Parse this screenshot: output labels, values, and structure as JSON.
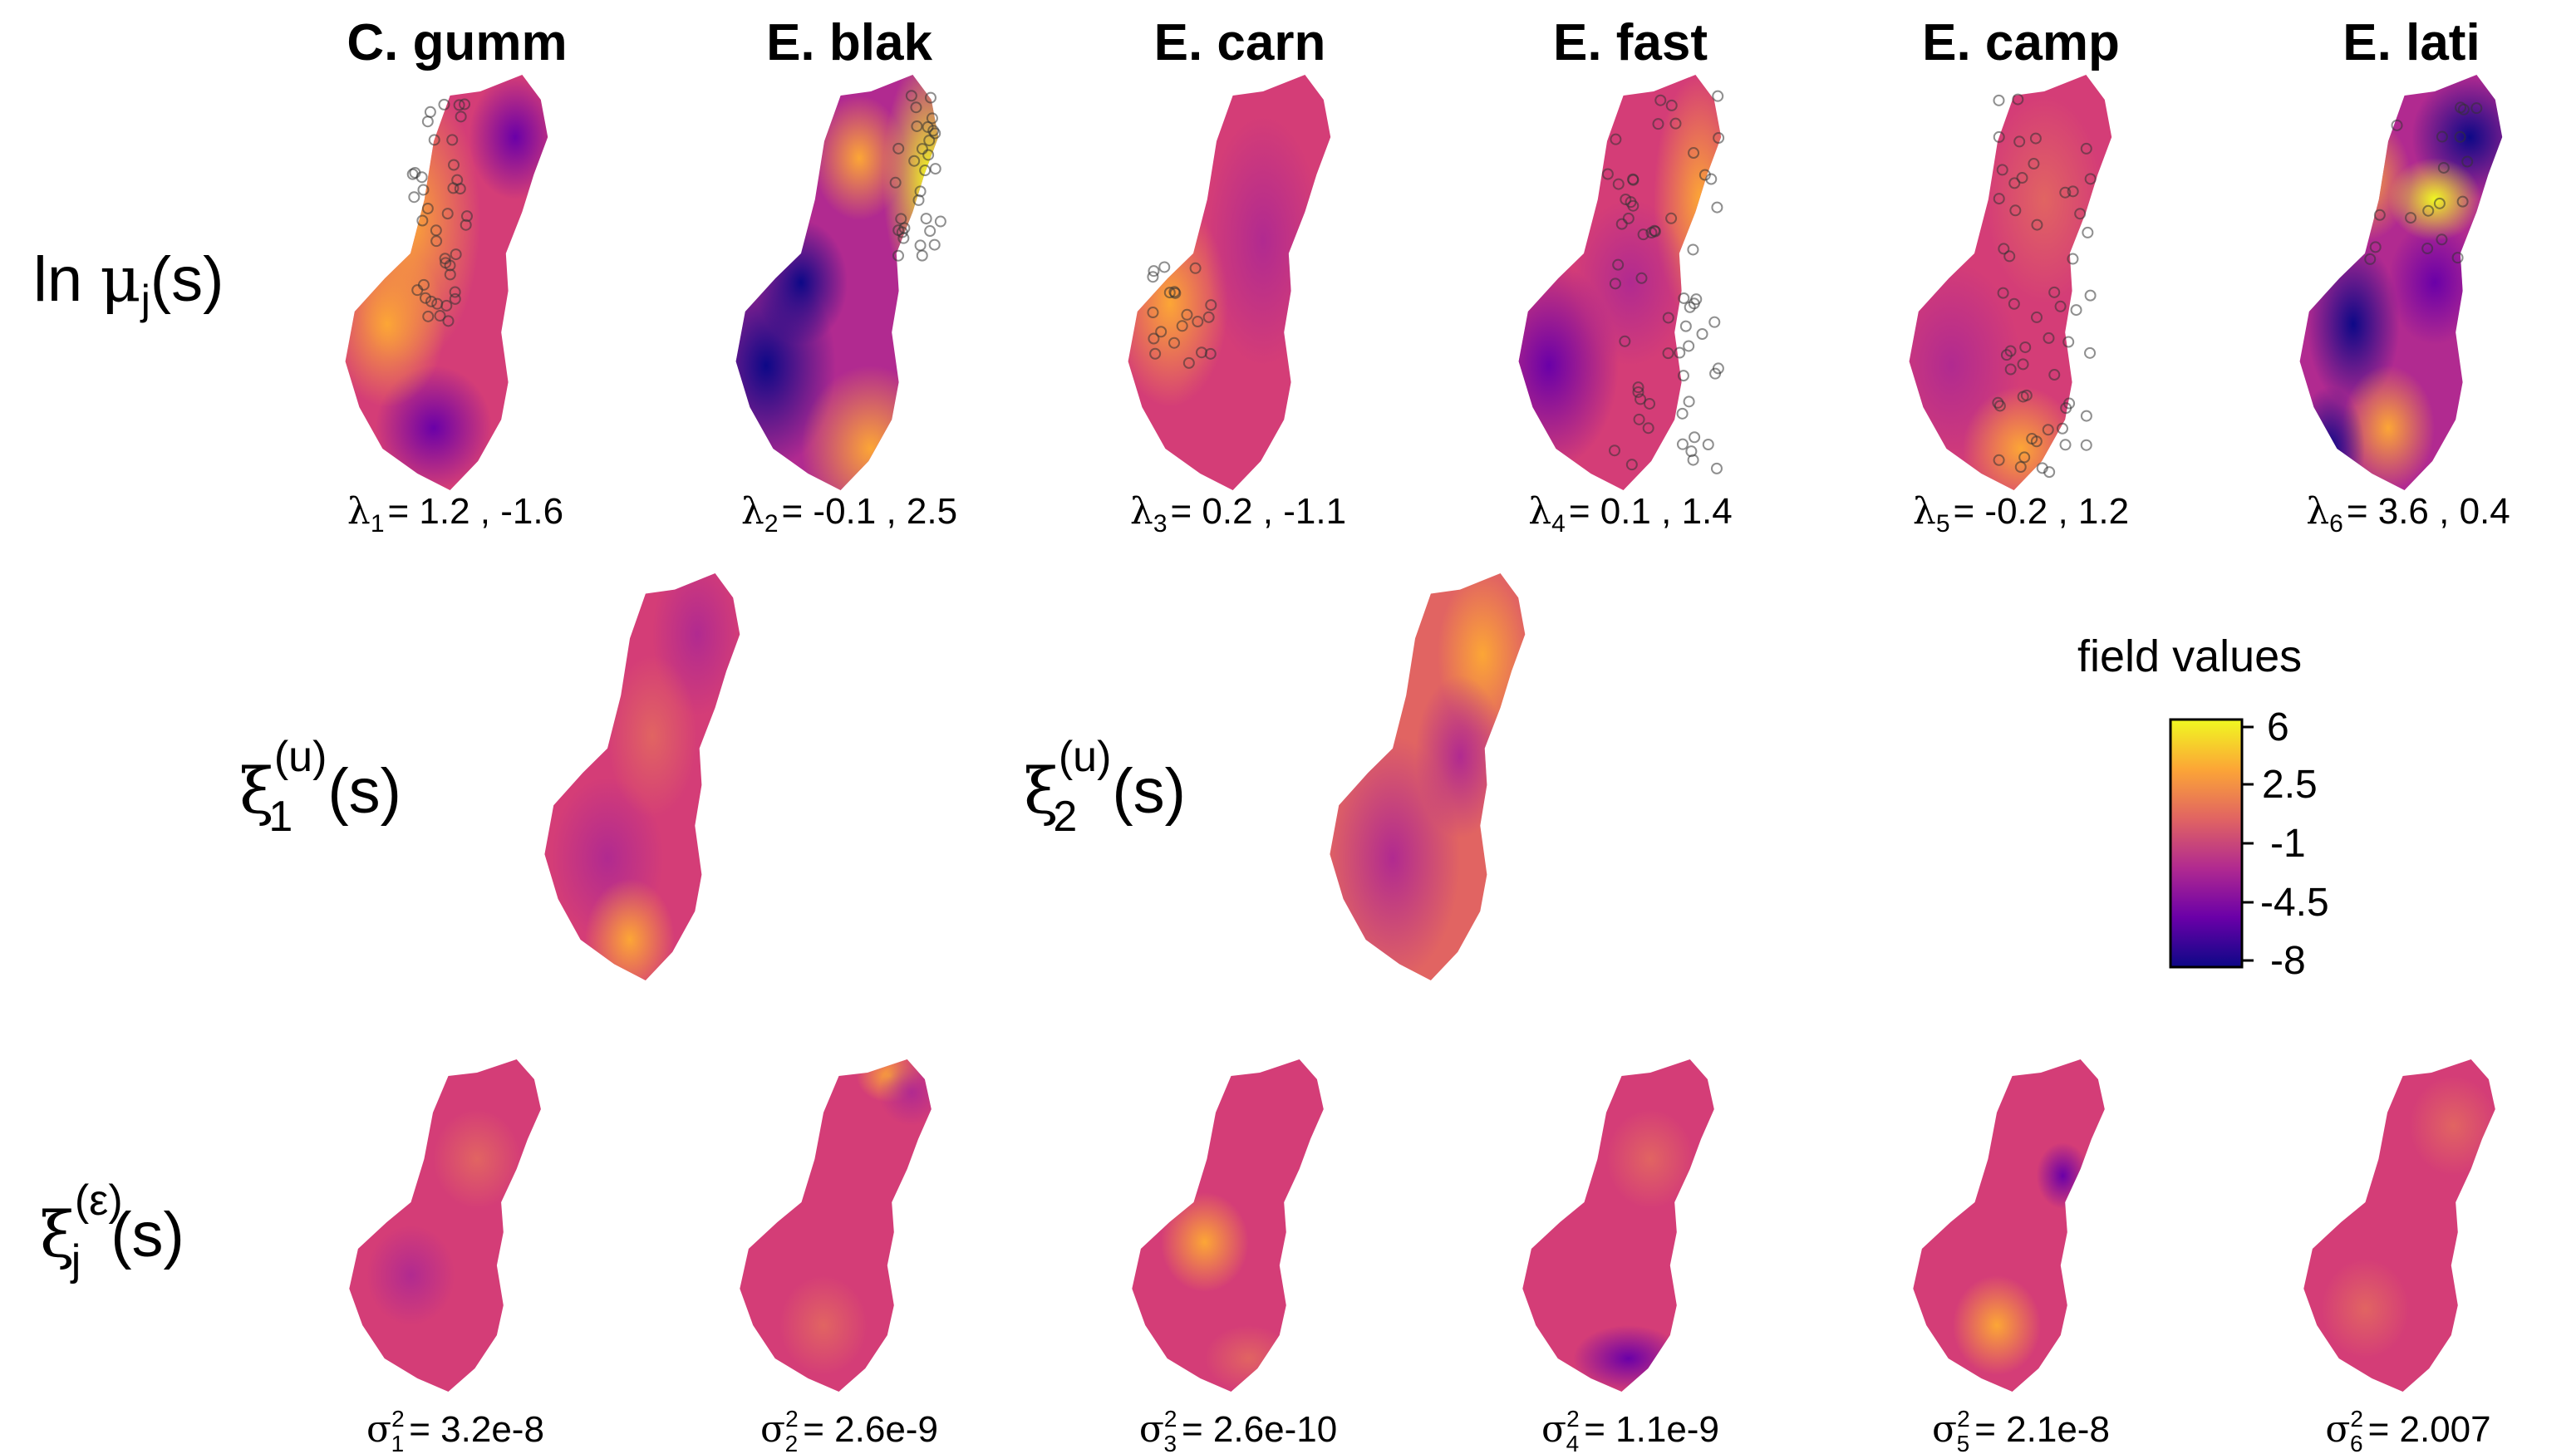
{
  "columns": [
    "C. gumm",
    "E. blak",
    "E. carn",
    "E. fast",
    "E. camp",
    "E. lati"
  ],
  "rows": {
    "log_intensity": {
      "prefix": "ln ",
      "greek": "μ",
      "sub": "j",
      "suffix": "(s)"
    },
    "shared_field_1": {
      "greek": "ξ",
      "sub": "1",
      "sup": "(u)",
      "suffix": "(s)"
    },
    "shared_field_2": {
      "greek": "ξ",
      "sub": "2",
      "sup": "(u)",
      "suffix": "(s)"
    },
    "species_field": {
      "greek": "ξ",
      "sub": "j",
      "sup": "(ε)",
      "suffix": "(s)"
    }
  },
  "lambda_labels": [
    {
      "greek": "λ",
      "sub": "1",
      "text": "= 1.2 , -1.6"
    },
    {
      "greek": "λ",
      "sub": "2",
      "text": "= -0.1 , 2.5"
    },
    {
      "greek": "λ",
      "sub": "3",
      "text": "= 0.2 , -1.1"
    },
    {
      "greek": "λ",
      "sub": "4",
      "text": "= 0.1 , 1.4"
    },
    {
      "greek": "λ",
      "sub": "5",
      "text": "= -0.2 , 1.2"
    },
    {
      "greek": "λ",
      "sub": "6",
      "text": "= 3.6 , 0.4"
    }
  ],
  "sigma_labels": [
    {
      "greek": "σ",
      "sub": "1",
      "sup": "2",
      "text": "= 3.2e-8"
    },
    {
      "greek": "σ",
      "sub": "2",
      "sup": "2",
      "text": "= 2.6e-9"
    },
    {
      "greek": "σ",
      "sub": "3",
      "sup": "2",
      "text": "= 2.6e-10"
    },
    {
      "greek": "σ",
      "sub": "4",
      "sup": "2",
      "text": "= 1.1e-9"
    },
    {
      "greek": "σ",
      "sub": "5",
      "sup": "2",
      "text": "= 2.1e-8"
    },
    {
      "greek": "σ",
      "sub": "6",
      "sup": "2",
      "text": "= 2.007"
    }
  ],
  "legend": {
    "title": "field values",
    "ticks": [
      "6",
      "2.5",
      "-1",
      "-4.5",
      "-8"
    ],
    "range": [
      -8,
      6
    ],
    "colormap": "plasma",
    "colors": [
      "#0d0887",
      "#6a00a8",
      "#b12a90",
      "#e16462",
      "#fca636",
      "#f0f921"
    ]
  },
  "colors": {
    "point_outline": "#333333"
  }
}
